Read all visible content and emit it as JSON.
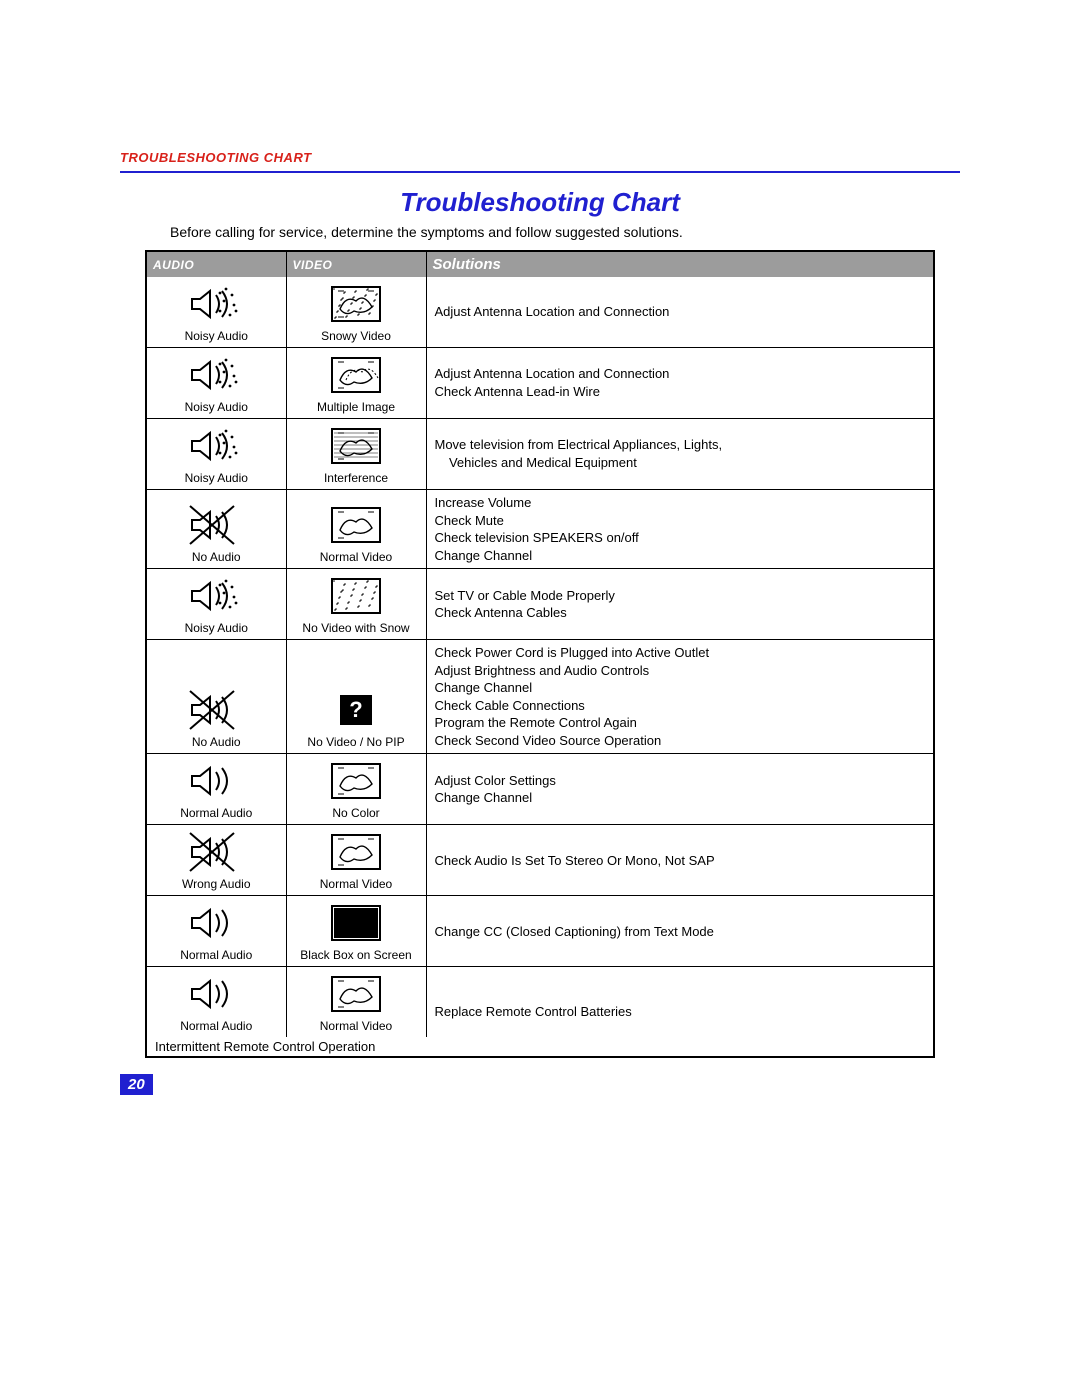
{
  "colors": {
    "header_text": "#d8211a",
    "title_text": "#2020d0",
    "rule": "#2020d0",
    "table_header_bg": "#9c9c9c",
    "page_num_bg": "#2020d0",
    "black": "#000000"
  },
  "running_header": "TROUBLESHOOTING CHART",
  "title": "Troubleshooting Chart",
  "intro": "Before calling for service, determine the symptoms and follow suggested solutions.",
  "columns": {
    "audio": "AUDIO",
    "video": "VIDEO",
    "solutions": "Solutions"
  },
  "rows": [
    {
      "audio": {
        "icon": "speaker-noisy",
        "label": "Noisy Audio"
      },
      "video": {
        "icon": "tv-snowy",
        "label": "Snowy Video"
      },
      "solutions": [
        "Adjust Antenna Location and Connection"
      ]
    },
    {
      "audio": {
        "icon": "speaker-noisy",
        "label": "Noisy Audio"
      },
      "video": {
        "icon": "tv-multiple",
        "label": "Multiple Image"
      },
      "solutions": [
        "Adjust Antenna Location and Connection",
        "Check Antenna Lead-in Wire"
      ]
    },
    {
      "audio": {
        "icon": "speaker-noisy",
        "label": "Noisy Audio"
      },
      "video": {
        "icon": "tv-interference",
        "label": "Interference"
      },
      "solutions": [
        "Move television from Electrical Appliances, Lights,\n   Vehicles and Medical Equipment"
      ]
    },
    {
      "audio": {
        "icon": "speaker-crossed",
        "label": "No Audio"
      },
      "video": {
        "icon": "tv-normal",
        "label": "Normal Video"
      },
      "solutions": [
        "Increase Volume",
        "Check Mute",
        "Check television SPEAKERS on/off",
        "Change Channel"
      ]
    },
    {
      "audio": {
        "icon": "speaker-noisy",
        "label": "Noisy Audio"
      },
      "video": {
        "icon": "tv-nosignal-snow",
        "label": "No Video with Snow"
      },
      "solutions": [
        "Set TV or Cable Mode Properly",
        "Check Antenna Cables"
      ]
    },
    {
      "audio": {
        "icon": "speaker-crossed",
        "label": "No Audio"
      },
      "video": {
        "icon": "tv-question",
        "label": "No Video / No PIP"
      },
      "solutions": [
        "Check Power Cord is Plugged into Active Outlet",
        "Adjust Brightness and Audio Controls",
        "Change Channel",
        "Check Cable Connections",
        "Program the Remote Control Again",
        "Check Second Video Source Operation"
      ]
    },
    {
      "audio": {
        "icon": "speaker-normal",
        "label": "Normal Audio"
      },
      "video": {
        "icon": "tv-nocolor",
        "label": "No Color"
      },
      "solutions": [
        "Adjust Color Settings",
        "Change Channel"
      ]
    },
    {
      "audio": {
        "icon": "speaker-crossed",
        "label": "Wrong Audio"
      },
      "video": {
        "icon": "tv-normal",
        "label": "Normal Video"
      },
      "solutions": [
        "Check Audio Is Set To Stereo Or Mono, Not SAP"
      ]
    },
    {
      "audio": {
        "icon": "speaker-normal",
        "label": "Normal Audio"
      },
      "video": {
        "icon": "tv-blackbox",
        "label": "Black Box on Screen"
      },
      "solutions": [
        "Change CC (Closed Captioning) from Text Mode"
      ]
    },
    {
      "audio": {
        "icon": "speaker-normal",
        "label": "Normal Audio"
      },
      "video": {
        "icon": "tv-normal",
        "label": "Normal Video"
      },
      "solutions": [
        "Replace Remote Control Batteries"
      ],
      "footnote": "Intermittent Remote Control Operation"
    }
  ],
  "page_number": "20"
}
